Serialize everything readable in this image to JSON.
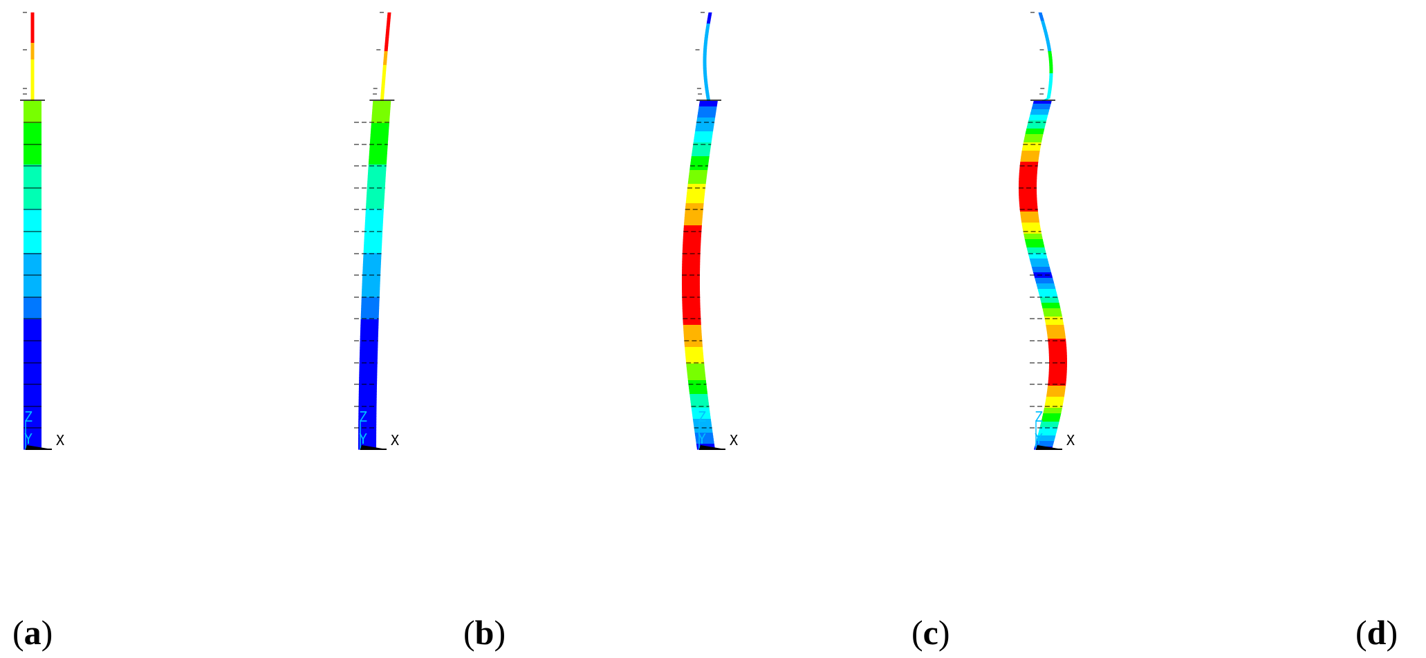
{
  "figure": {
    "colormap": [
      "#0000ff",
      "#0078ff",
      "#00b4ff",
      "#00ffff",
      "#00ffb4",
      "#00ff00",
      "#78ff00",
      "#ffff00",
      "#ffb400",
      "#ff0000"
    ],
    "panels": [
      {
        "id": "a",
        "label_open": "(",
        "label_letter": "a",
        "label_close": ")",
        "axis_x": "X",
        "axis_y": "Y",
        "axis_z": "Z",
        "mode_amplitude": 0.0,
        "mode_shape": "straight"
      },
      {
        "id": "b",
        "label_open": "(",
        "label_letter": "b",
        "label_close": ")",
        "axis_x": "X",
        "axis_y": "Y",
        "axis_z": "Z",
        "mode_amplitude": 1.0,
        "mode_shape": "cantilever-first-bending"
      },
      {
        "id": "c",
        "label_open": "(",
        "label_letter": "c",
        "label_close": ")",
        "axis_x": "X",
        "axis_y": "Y",
        "axis_z": "Z",
        "mode_amplitude": 1.0,
        "mode_shape": "second-bending"
      },
      {
        "id": "d",
        "label_open": "(",
        "label_letter": "d",
        "label_close": ")",
        "axis_x": "X",
        "axis_y": "Y",
        "axis_z": "Z",
        "mode_amplitude": 1.0,
        "mode_shape": "third-bending"
      }
    ]
  }
}
